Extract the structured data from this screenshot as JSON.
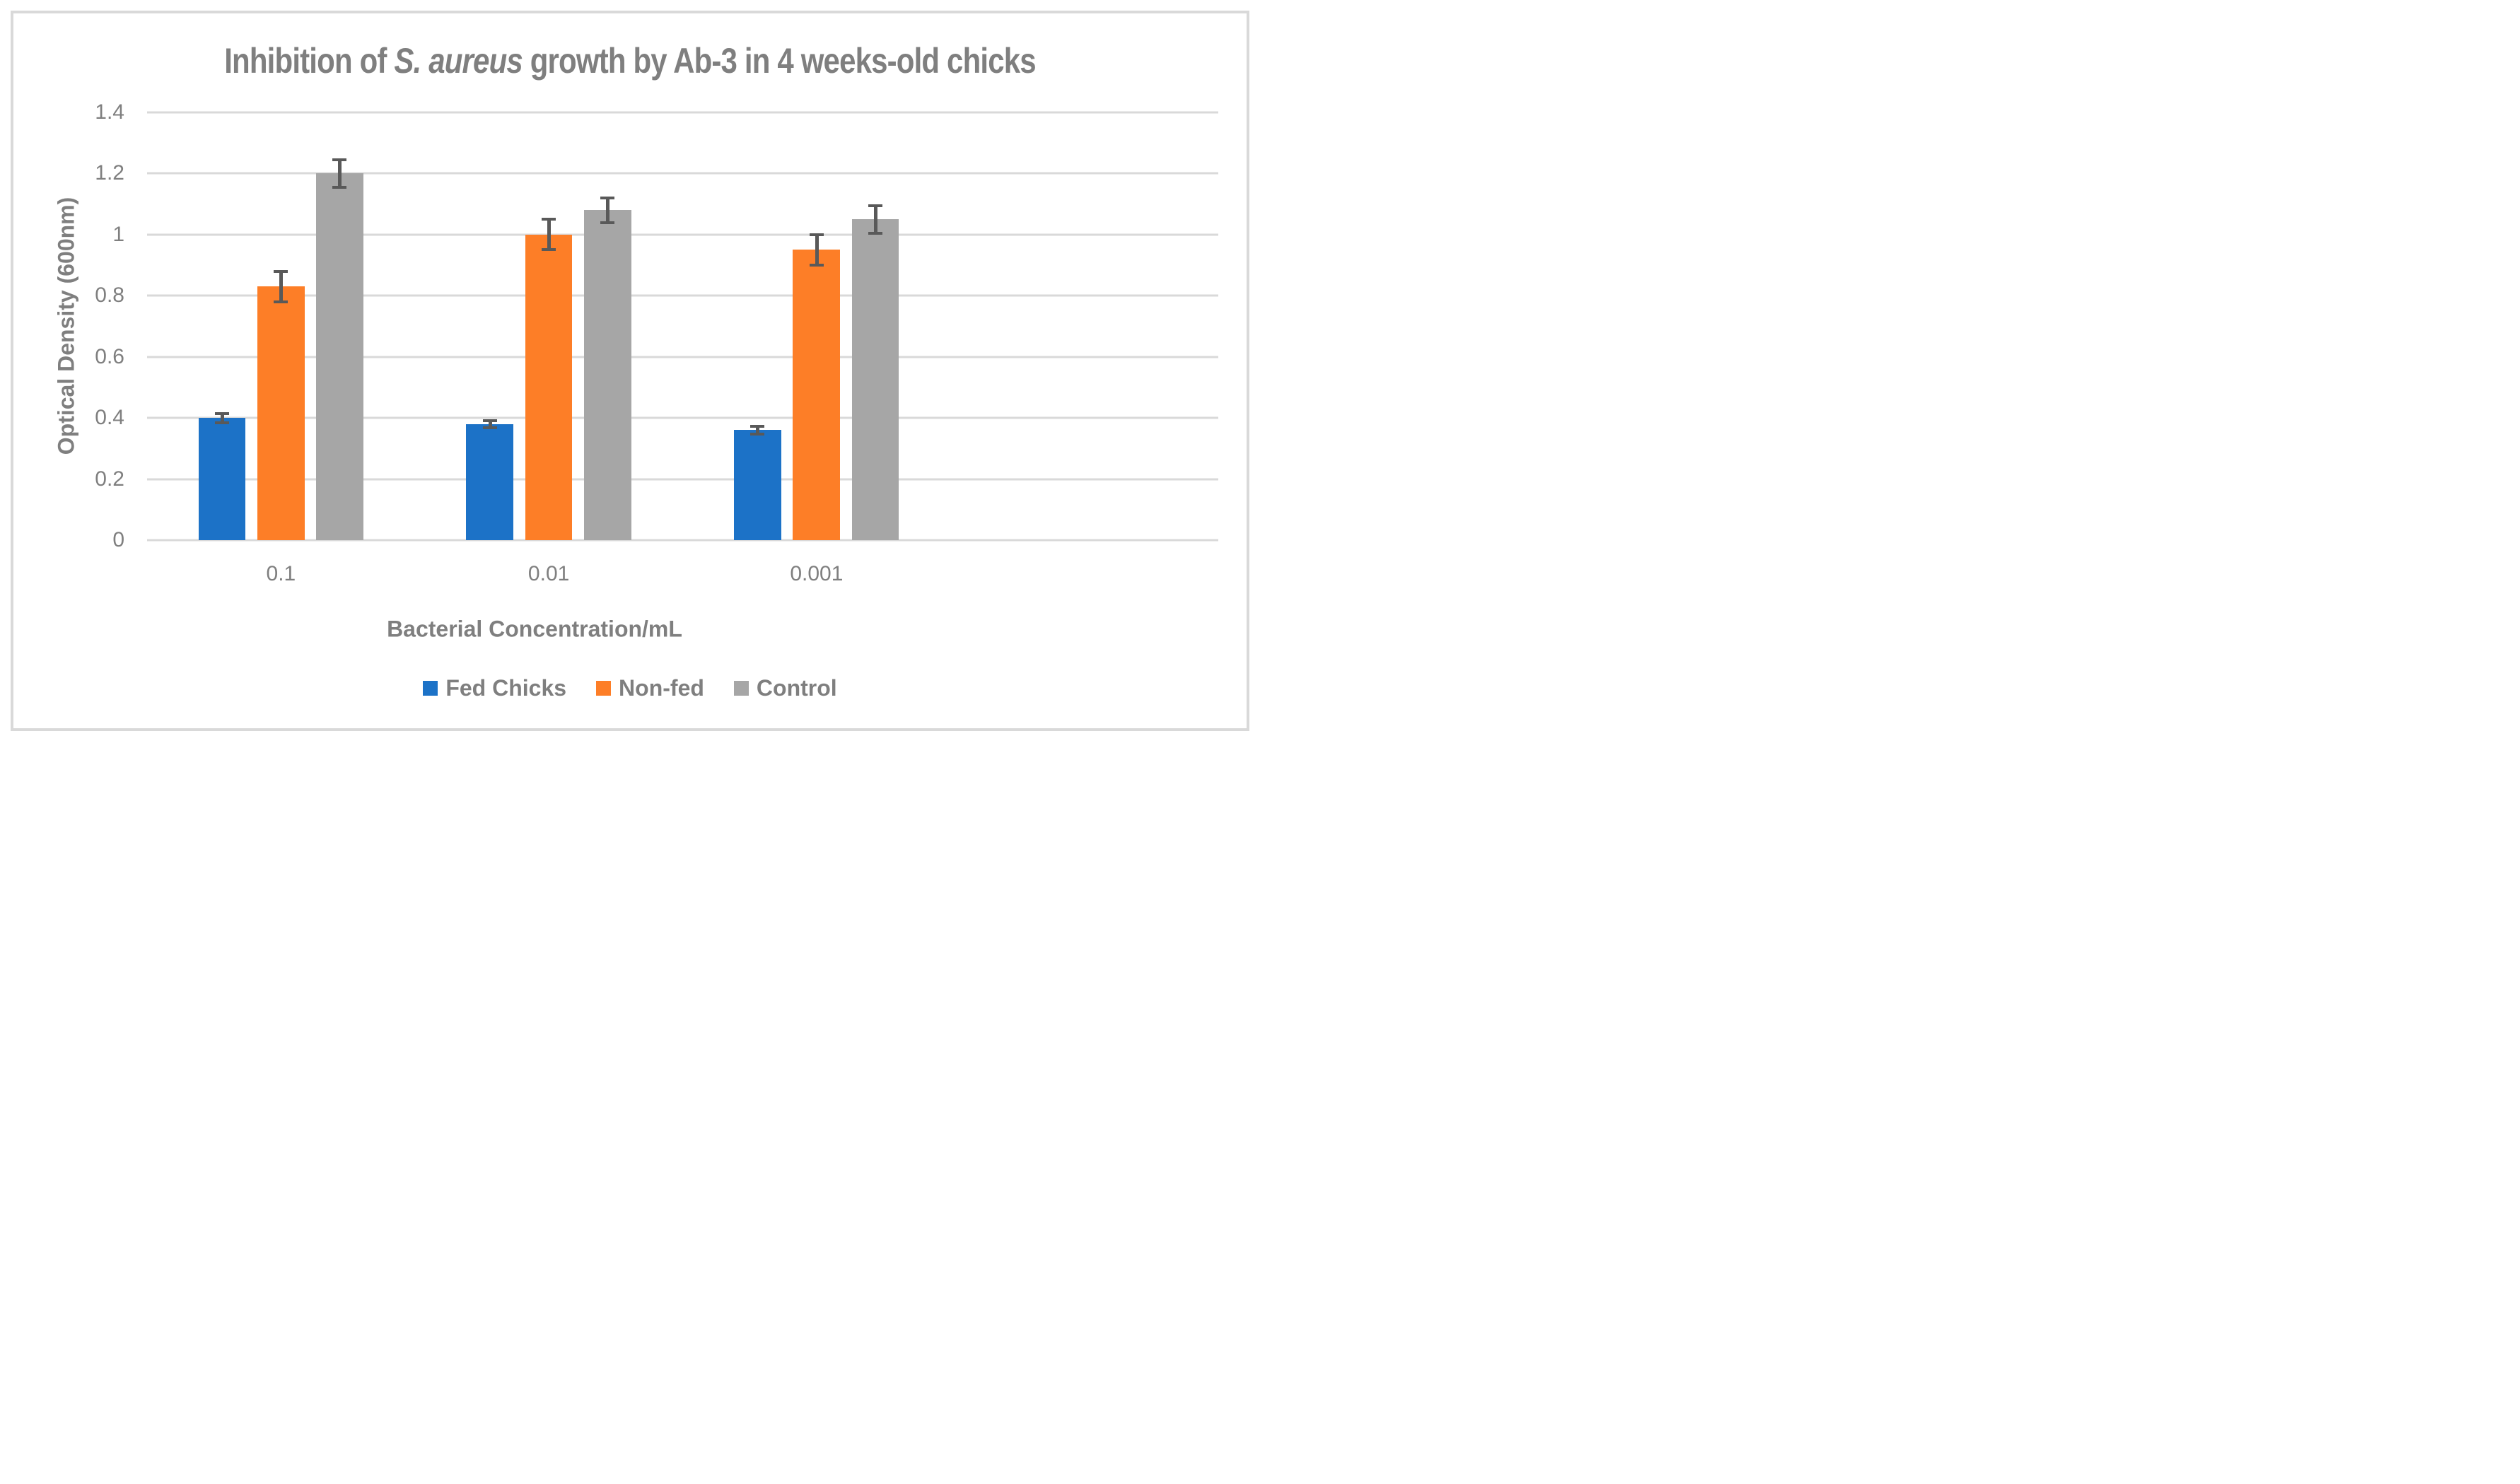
{
  "title": {
    "pre": "Inhibition of ",
    "italic": "S. aureus",
    "post": " growth by Ab-3 in 4 weeks-old chicks"
  },
  "chart_data": {
    "type": "bar",
    "title": "Inhibition of S. aureus growth by Ab-3 in 4 weeks-old chicks",
    "title_italic_segment": "S. aureus",
    "categories": [
      "0.1",
      "0.01",
      "0.001"
    ],
    "series": [
      {
        "name": "Fed Chicks",
        "color": "#1C72C7",
        "values": [
          0.4,
          0.38,
          0.36
        ],
        "errors": [
          0.015,
          0.012,
          0.012
        ]
      },
      {
        "name": "Non-fed",
        "color": "#FD7E27",
        "values": [
          0.83,
          1.0,
          0.95
        ],
        "errors": [
          0.05,
          0.05,
          0.05
        ]
      },
      {
        "name": "Control",
        "color": "#A6A6A6",
        "values": [
          1.2,
          1.08,
          1.05
        ],
        "errors": [
          0.045,
          0.04,
          0.045
        ]
      }
    ],
    "xlabel": "Bacterial Concentration/mL",
    "ylabel": "Optical Density (600nm)",
    "ylim": [
      0,
      1.4
    ],
    "yticks": [
      "0",
      "0.2",
      "0.4",
      "0.6",
      "0.8",
      "1",
      "1.2",
      "1.4"
    ],
    "grid": true,
    "error_bars": true,
    "legend_position": "bottom",
    "layout_hints": {
      "category_slots": 4,
      "bars_per_group": 3
    },
    "styles": {
      "gridline_color": "#D9D9D9",
      "error_bar_color": "#595959",
      "text_color": "#7F7F7F",
      "chart_border_color": "#D9D9D9",
      "background": "#FFFFFF"
    }
  }
}
